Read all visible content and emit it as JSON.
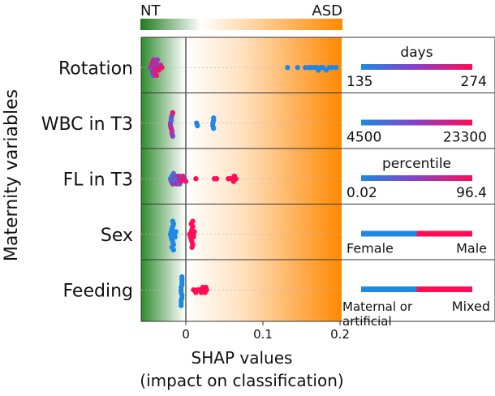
{
  "chart_data": {
    "type": "scatter",
    "subtype": "beeswarm",
    "xlabel": "SHAP values",
    "xlabel2": "(impact on classification)",
    "ylabel": "Maternity variables",
    "xlim": [
      -0.058,
      0.205
    ],
    "xticks": [
      0,
      0.1,
      0.2
    ],
    "xtick_labels": [
      "0",
      "0.1",
      "0.2"
    ],
    "gradient_bar": {
      "left_label": "NT",
      "right_label": "ASD",
      "left_color": "#1f7a1f",
      "right_color": "#ff8800"
    },
    "colors": {
      "low": "#1e88e5",
      "high": "#ff0d57",
      "zero_line": "#555555"
    },
    "categories": [
      "Rotation",
      "WBC in T3",
      "FL in T3",
      "Sex",
      "Feeding"
    ],
    "series": [
      {
        "name": "Rotation",
        "legend": {
          "title": "days",
          "min_label": "135",
          "max_label": "274",
          "style": "gradient"
        },
        "points": [
          {
            "x": -0.046,
            "c": 0.9
          },
          {
            "x": -0.045,
            "c": 0.6
          },
          {
            "x": -0.044,
            "c": 0.2
          },
          {
            "x": -0.044,
            "c": 0.8
          },
          {
            "x": -0.043,
            "c": 0.5
          },
          {
            "x": -0.043,
            "c": 0.9
          },
          {
            "x": -0.042,
            "c": 0.3
          },
          {
            "x": -0.042,
            "c": 0.7
          },
          {
            "x": -0.041,
            "c": 0.6
          },
          {
            "x": -0.041,
            "c": 0.9
          },
          {
            "x": -0.04,
            "c": 0.4
          },
          {
            "x": -0.04,
            "c": 0.8
          },
          {
            "x": -0.039,
            "c": 0.7
          },
          {
            "x": -0.038,
            "c": 0.9
          },
          {
            "x": -0.037,
            "c": 0.5
          },
          {
            "x": -0.036,
            "c": 0.8
          },
          {
            "x": -0.035,
            "c": 0.9
          },
          {
            "x": -0.033,
            "c": 0.7
          },
          {
            "x": -0.031,
            "c": 0.9
          },
          {
            "x": 0.132,
            "c": 0.0
          },
          {
            "x": 0.145,
            "c": 0.0
          },
          {
            "x": 0.155,
            "c": 0.05
          },
          {
            "x": 0.16,
            "c": 0.0
          },
          {
            "x": 0.163,
            "c": 0.0
          },
          {
            "x": 0.167,
            "c": 0.0
          },
          {
            "x": 0.17,
            "c": 0.05
          },
          {
            "x": 0.172,
            "c": 0.0
          },
          {
            "x": 0.175,
            "c": 0.0
          },
          {
            "x": 0.178,
            "c": 0.0
          },
          {
            "x": 0.182,
            "c": 0.0
          },
          {
            "x": 0.186,
            "c": 0.0
          },
          {
            "x": 0.19,
            "c": 0.0
          },
          {
            "x": 0.195,
            "c": 0.0
          }
        ]
      },
      {
        "name": "WBC in T3",
        "legend": {
          "title": "",
          "min_label": "4500",
          "max_label": "23300",
          "style": "gradient"
        },
        "points": [
          {
            "x": -0.02,
            "c": 0.9
          },
          {
            "x": -0.02,
            "c": 0.5
          },
          {
            "x": -0.019,
            "c": 0.2
          },
          {
            "x": -0.019,
            "c": 0.7
          },
          {
            "x": -0.019,
            "c": 0.4
          },
          {
            "x": -0.018,
            "c": 0.8
          },
          {
            "x": -0.018,
            "c": 0.3
          },
          {
            "x": -0.018,
            "c": 0.6
          },
          {
            "x": -0.017,
            "c": 0.9
          },
          {
            "x": -0.017,
            "c": 0.5
          },
          {
            "x": 0.014,
            "c": 0.05
          },
          {
            "x": 0.015,
            "c": 0.0
          },
          {
            "x": 0.035,
            "c": 0.0
          },
          {
            "x": 0.035,
            "c": 0.05
          },
          {
            "x": 0.036,
            "c": 0.0
          },
          {
            "x": 0.036,
            "c": 0.0
          },
          {
            "x": 0.036,
            "c": 0.0
          }
        ]
      },
      {
        "name": "FL in T3",
        "legend": {
          "title": "percentile",
          "min_label": "0.02",
          "max_label": "96.4",
          "style": "gradient"
        },
        "points": [
          {
            "x": -0.02,
            "c": 0.1
          },
          {
            "x": -0.019,
            "c": 0.3
          },
          {
            "x": -0.018,
            "c": 0.1
          },
          {
            "x": -0.017,
            "c": 0.5
          },
          {
            "x": -0.016,
            "c": 0.2
          },
          {
            "x": -0.015,
            "c": 0.6
          },
          {
            "x": -0.014,
            "c": 0.1
          },
          {
            "x": -0.013,
            "c": 0.4
          },
          {
            "x": -0.012,
            "c": 0.7
          },
          {
            "x": -0.011,
            "c": 0.2
          },
          {
            "x": -0.01,
            "c": 0.5
          },
          {
            "x": -0.009,
            "c": 0.8
          },
          {
            "x": -0.008,
            "c": 0.3
          },
          {
            "x": -0.007,
            "c": 0.6
          },
          {
            "x": -0.006,
            "c": 0.9
          },
          {
            "x": -0.004,
            "c": 0.7
          },
          {
            "x": -0.002,
            "c": 0.8
          },
          {
            "x": 0.0,
            "c": 0.9
          },
          {
            "x": 0.013,
            "c": 1.0
          },
          {
            "x": 0.037,
            "c": 1.0
          },
          {
            "x": 0.04,
            "c": 1.0
          },
          {
            "x": 0.055,
            "c": 1.0
          },
          {
            "x": 0.058,
            "c": 1.0
          },
          {
            "x": 0.06,
            "c": 1.0
          },
          {
            "x": 0.062,
            "c": 1.0
          },
          {
            "x": 0.063,
            "c": 1.0
          },
          {
            "x": 0.065,
            "c": 1.0
          }
        ]
      },
      {
        "name": "Sex",
        "legend": {
          "title": "",
          "min_label": "Female",
          "max_label": "Male",
          "style": "split"
        },
        "points": [
          {
            "x": -0.02,
            "c": 0.0
          },
          {
            "x": -0.019,
            "c": 0.0
          },
          {
            "x": -0.019,
            "c": 0.0
          },
          {
            "x": -0.018,
            "c": 0.0
          },
          {
            "x": -0.018,
            "c": 0.0
          },
          {
            "x": -0.017,
            "c": 0.0
          },
          {
            "x": -0.017,
            "c": 0.0
          },
          {
            "x": -0.016,
            "c": 0.0
          },
          {
            "x": -0.016,
            "c": 0.0
          },
          {
            "x": -0.015,
            "c": 0.0
          },
          {
            "x": -0.014,
            "c": 0.0
          },
          {
            "x": -0.013,
            "c": 0.0
          },
          {
            "x": -0.018,
            "c": 0.0
          },
          {
            "x": -0.017,
            "c": 0.0
          },
          {
            "x": -0.016,
            "c": 0.0
          },
          {
            "x": 0.005,
            "c": 1.0
          },
          {
            "x": 0.006,
            "c": 1.0
          },
          {
            "x": 0.006,
            "c": 1.0
          },
          {
            "x": 0.007,
            "c": 1.0
          },
          {
            "x": 0.007,
            "c": 1.0
          },
          {
            "x": 0.008,
            "c": 1.0
          },
          {
            "x": 0.008,
            "c": 1.0
          },
          {
            "x": 0.009,
            "c": 1.0
          },
          {
            "x": 0.009,
            "c": 1.0
          },
          {
            "x": 0.01,
            "c": 1.0
          },
          {
            "x": 0.01,
            "c": 1.0
          },
          {
            "x": 0.011,
            "c": 1.0
          },
          {
            "x": 0.007,
            "c": 1.0
          },
          {
            "x": 0.008,
            "c": 1.0
          },
          {
            "x": 0.009,
            "c": 1.0
          }
        ]
      },
      {
        "name": "Feeding",
        "legend": {
          "title": "",
          "min_label": "Maternal or",
          "min_label_2": "artificial",
          "max_label": "Mixed",
          "style": "split"
        },
        "points": [
          {
            "x": -0.006,
            "c": 0.0
          },
          {
            "x": -0.006,
            "c": 0.0
          },
          {
            "x": -0.006,
            "c": 0.0
          },
          {
            "x": -0.005,
            "c": 0.0
          },
          {
            "x": -0.005,
            "c": 0.0
          },
          {
            "x": -0.005,
            "c": 0.0
          },
          {
            "x": -0.005,
            "c": 0.0
          },
          {
            "x": -0.006,
            "c": 0.0
          },
          {
            "x": -0.005,
            "c": 0.0
          },
          {
            "x": -0.006,
            "c": 0.0
          },
          {
            "x": -0.005,
            "c": 0.0
          },
          {
            "x": -0.006,
            "c": 0.0
          },
          {
            "x": 0.01,
            "c": 1.0
          },
          {
            "x": 0.013,
            "c": 1.0
          },
          {
            "x": 0.015,
            "c": 1.0
          },
          {
            "x": 0.018,
            "c": 1.0
          },
          {
            "x": 0.02,
            "c": 1.0
          },
          {
            "x": 0.022,
            "c": 1.0
          },
          {
            "x": 0.024,
            "c": 1.0
          },
          {
            "x": 0.025,
            "c": 1.0
          },
          {
            "x": 0.026,
            "c": 1.0
          },
          {
            "x": 0.027,
            "c": 1.0
          }
        ]
      }
    ]
  }
}
